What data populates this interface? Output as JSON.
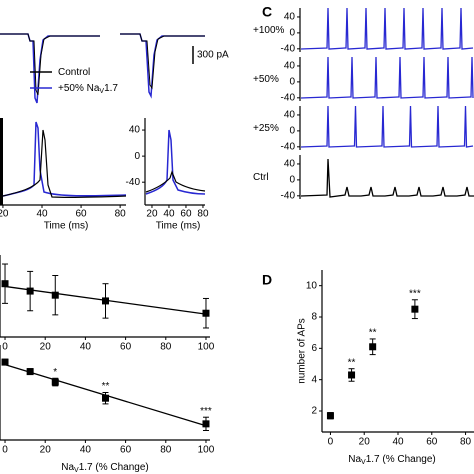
{
  "chart_data": [
    {
      "type": "trace",
      "series": [
        {
          "name": [
            "Control"
          ],
          "color": "#000000"
        },
        {
          "name": [
            "+50% Na",
            "V",
            "1.7"
          ],
          "color": "#2828d2"
        }
      ],
      "scale_bar": "300 pA"
    },
    {
      "type": "trace",
      "xlabel": "Time (ms)",
      "xlim": [
        18.5,
        83
      ],
      "xticks": [
        20,
        40,
        60,
        80
      ]
    },
    {
      "type": "trace",
      "xlabel": "Time (ms)",
      "xlim": [
        11.8,
        82.4
      ],
      "xticks": [
        20,
        40,
        60,
        80
      ],
      "ylim": [
        -75,
        58.5
      ],
      "yticks": [
        -40,
        0,
        40
      ]
    },
    {
      "type": "trace",
      "label": "C",
      "ylim": [
        -48,
        70
      ],
      "rows": [
        {
          "name": "+100%",
          "color": "#2828d2",
          "yticks": [
            -40,
            0,
            40
          ]
        },
        {
          "name": "+50%",
          "color": "#2828d2",
          "yticks": [
            -40,
            0,
            40
          ]
        },
        {
          "name": "+25%",
          "color": "#2828d2",
          "yticks": [
            -40,
            0,
            40
          ]
        },
        {
          "name": "Ctrl",
          "color": "#000000",
          "yticks": [
            -40,
            0,
            40
          ]
        }
      ]
    },
    {
      "type": "scatter",
      "x": [
        0,
        12.5,
        25,
        50,
        100
      ],
      "values": [
        0.65,
        0.56,
        0.51,
        0.44,
        0.29
      ],
      "errors": [
        0.24,
        0.24,
        0.24,
        0.21,
        0.18
      ],
      "xlim": [
        -2.5,
        102
      ],
      "ylim": [
        0,
        1
      ],
      "xticks": [
        0,
        20,
        40,
        60,
        80,
        100
      ],
      "fit": true
    },
    {
      "type": "scatter",
      "x": [
        0,
        12.5,
        25,
        50,
        100
      ],
      "values": [
        0.82,
        0.72,
        0.61,
        0.44,
        0.17
      ],
      "errors": [
        0.03,
        0.03,
        0.04,
        0.06,
        0.07
      ],
      "stars": [
        null,
        null,
        "*",
        "**",
        "***"
      ],
      "xlim": [
        -2.5,
        102
      ],
      "ylim": [
        0,
        1
      ],
      "xticks": [
        0,
        20,
        40,
        60,
        80,
        100
      ],
      "xlabel": [
        "Na",
        "V",
        "1.7 (% Change)"
      ],
      "fit": true
    },
    {
      "type": "scatter",
      "label": "D",
      "x": [
        0,
        12.5,
        25,
        50
      ],
      "values": [
        1.7,
        4.3,
        6.1,
        8.5
      ],
      "errors": [
        0.2,
        0.4,
        0.5,
        0.6
      ],
      "stars": [
        null,
        "**",
        "**",
        "***"
      ],
      "xlim": [
        -5,
        85
      ],
      "ylim": [
        0.66,
        11
      ],
      "xticks": [
        0,
        20,
        40,
        60,
        80
      ],
      "yticks": [
        2,
        4,
        6,
        8,
        10
      ],
      "xlabel": [
        "Na",
        "V",
        "1.7 (% Change)"
      ],
      "ylabel": "number of APs"
    }
  ]
}
